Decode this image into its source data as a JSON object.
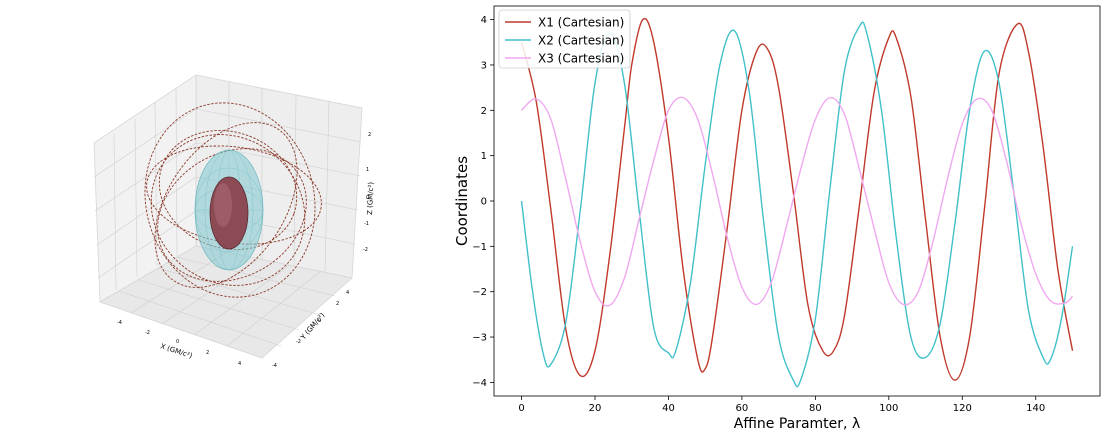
{
  "figure": {
    "panel_3d": {
      "xlabel": "X (GM/c²)",
      "ylabel": "Y (GM/c²)",
      "zlabel": "Z (GM/c²)",
      "x_ticks": [
        "-4",
        "-2",
        "0",
        "2",
        "4"
      ],
      "y_ticks": [
        "-4",
        "-2",
        "0",
        "2",
        "4"
      ],
      "z_ticks": [
        "-2",
        "-1",
        "0",
        "1",
        "2"
      ],
      "colors": {
        "orbit": "#8b3a2a",
        "outer_surface": "#7fc8cf",
        "inner_surface": "#a14a55"
      }
    }
  },
  "chart_data": {
    "type": "line",
    "xlabel": "Affine Paramter, λ",
    "ylabel": "Coordinates",
    "xlim": [
      -7.5,
      157.5
    ],
    "ylim": [
      -4.3,
      4.3
    ],
    "x_ticks": [
      0,
      20,
      40,
      60,
      80,
      100,
      120,
      140
    ],
    "y_ticks": [
      -4,
      -3,
      -2,
      -1,
      0,
      1,
      2,
      3,
      4
    ],
    "grid": false,
    "legend_position": "top-left",
    "series": [
      {
        "name": "X1 (Cartesian)",
        "color": "#c0392b",
        "x": [
          0,
          4,
          8,
          12,
          16,
          20,
          24,
          28,
          30,
          33,
          36,
          40,
          44,
          48,
          50,
          52,
          56,
          60,
          64,
          67,
          70,
          74,
          78,
          82,
          85,
          88,
          92,
          96,
          100,
          102,
          106,
          110,
          114,
          118,
          122,
          126,
          130,
          135,
          138,
          142,
          146,
          150
        ],
        "y": [
          3.5,
          2.2,
          -0.2,
          -2.8,
          -3.85,
          -3.3,
          -1.2,
          1.6,
          3.0,
          4.0,
          3.5,
          1.4,
          -1.5,
          -3.5,
          -3.7,
          -3.0,
          -0.6,
          2.0,
          3.3,
          3.35,
          2.5,
          0.2,
          -2.3,
          -3.3,
          -3.3,
          -2.5,
          -0.1,
          2.4,
          3.6,
          3.6,
          2.3,
          -0.4,
          -3.0,
          -3.95,
          -3.0,
          -0.2,
          2.8,
          3.9,
          3.3,
          1.2,
          -1.5,
          -3.3
        ]
      },
      {
        "name": "X2 (Cartesian)",
        "color": "#40c0c8",
        "x": [
          0,
          3,
          6,
          8,
          12,
          16,
          20,
          24,
          28,
          32,
          36,
          40,
          42,
          46,
          50,
          54,
          58,
          62,
          66,
          70,
          74,
          76,
          80,
          84,
          88,
          92,
          94,
          98,
          102,
          106,
          110,
          114,
          118,
          122,
          126,
          130,
          134,
          138,
          142,
          144,
          147,
          150
        ],
        "y": [
          0.0,
          -2.0,
          -3.4,
          -3.6,
          -2.7,
          -0.2,
          2.6,
          3.7,
          2.6,
          -0.2,
          -2.8,
          -3.35,
          -3.3,
          -1.8,
          0.8,
          3.0,
          3.75,
          2.4,
          -0.5,
          -3.0,
          -3.95,
          -3.95,
          -2.6,
          0.3,
          2.9,
          3.85,
          3.7,
          2.0,
          -0.8,
          -3.0,
          -3.45,
          -2.7,
          -0.5,
          2.0,
          3.3,
          2.6,
          0.2,
          -2.4,
          -3.45,
          -3.5,
          -2.6,
          -1.0
        ]
      },
      {
        "name": "X3 (Cartesian)",
        "color": "#f0a8f0",
        "x": [
          0,
          4,
          8,
          12,
          16,
          20,
          24,
          28,
          32,
          36,
          40,
          44,
          48,
          52,
          56,
          60,
          64,
          68,
          72,
          76,
          80,
          84,
          88,
          92,
          96,
          100,
          104,
          108,
          112,
          116,
          120,
          124,
          128,
          132,
          136,
          140,
          144,
          148,
          150
        ],
        "y": [
          2.0,
          2.25,
          1.8,
          0.5,
          -0.9,
          -2.0,
          -2.3,
          -1.7,
          -0.4,
          0.9,
          2.0,
          2.28,
          1.8,
          0.6,
          -0.8,
          -1.9,
          -2.28,
          -1.8,
          -0.6,
          0.7,
          1.8,
          2.28,
          1.9,
          0.7,
          -0.6,
          -1.8,
          -2.28,
          -2.0,
          -0.9,
          0.5,
          1.7,
          2.25,
          2.0,
          0.9,
          -0.5,
          -1.6,
          -2.2,
          -2.25,
          -2.1
        ]
      }
    ]
  }
}
